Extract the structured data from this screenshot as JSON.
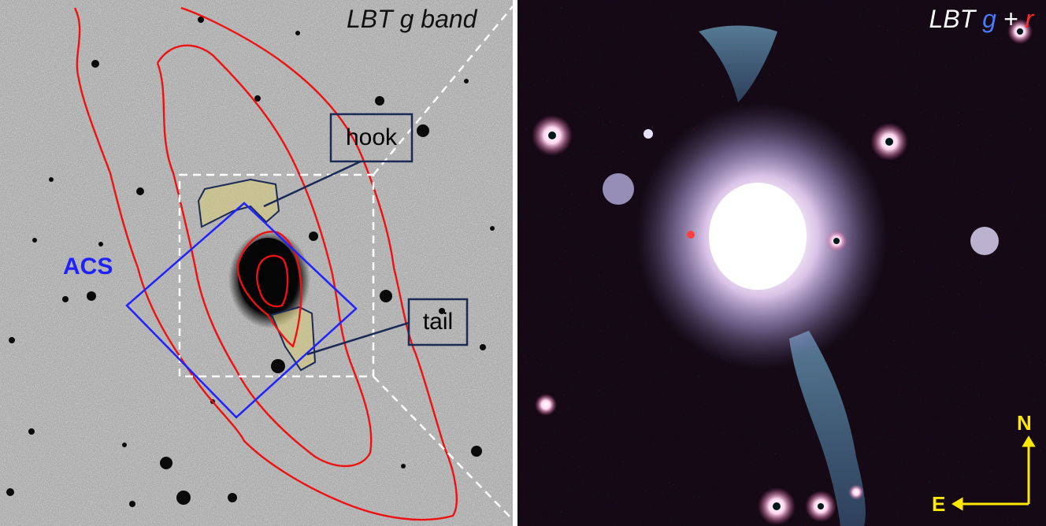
{
  "left_panel": {
    "title": "LBT g band",
    "labels": {
      "hook": "hook",
      "tail": "tail",
      "acs": "ACS"
    },
    "colors": {
      "contour": "#ee1111",
      "acs_footprint": "#1f22ff",
      "label_box": "#1a2a55",
      "region_fill": "#d8cc7a",
      "dashed_lines": "#ffffff"
    }
  },
  "right_panel": {
    "title_prefix": "LBT",
    "title_g": "g",
    "title_plus": "+",
    "title_r": "r",
    "compass": {
      "north": "N",
      "east": "E",
      "color": "#ffe800"
    },
    "colors": {
      "background": "#140914",
      "halo": "#c8c0ff",
      "stream": "#8fd8ff"
    }
  }
}
